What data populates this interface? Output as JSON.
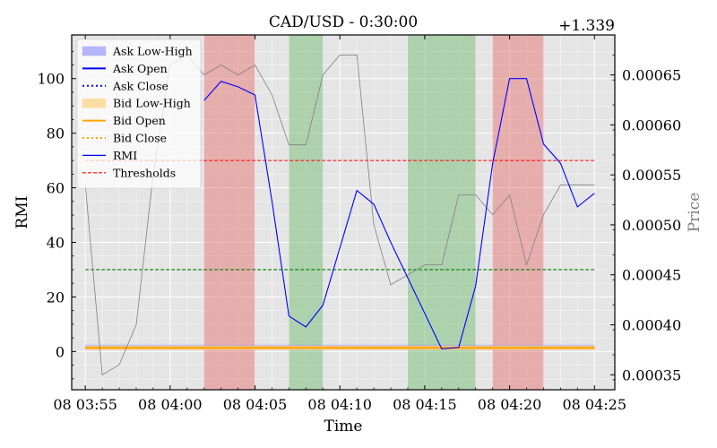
{
  "chart_data": {
    "type": "line",
    "title": "CAD/USD - 0:30:00",
    "xlabel": "Time",
    "ylabel_left": "RMI",
    "ylabel_right": "Price",
    "right_axis_offset_label": "+1.339",
    "x_ticks": [
      "08 03:55",
      "08 04:00",
      "08 04:05",
      "08 04:10",
      "08 04:15",
      "08 04:20",
      "08 04:25"
    ],
    "y_left_ticks": [
      "0",
      "20",
      "40",
      "60",
      "80",
      "100"
    ],
    "y_right_ticks": [
      "0.00035",
      "0.00040",
      "0.00045",
      "0.00050",
      "0.00055",
      "0.00060",
      "0.00065"
    ],
    "x_range_min": [
      -0.8,
      31.2
    ],
    "ylim_left": [
      -14,
      116
    ],
    "ylim_right": [
      0.000335,
      0.00069
    ],
    "grid": true,
    "legend_position": "upper-left",
    "colors": {
      "ask_band": "#9999ff",
      "ask_line": "#0000ff",
      "bid_band": "#ffd27f",
      "bid_line": "#ffa500",
      "rmi": "#0000ff",
      "upper_threshold": "#ff0000",
      "lower_threshold": "#008000",
      "price_line": "#808080",
      "overbought_span": "#e88080",
      "oversold_span": "#7fbf7f",
      "plot_bg": "#e5e5e5"
    },
    "legend": [
      {
        "label": "Ask Low-High",
        "kind": "band",
        "color": "#9999ff"
      },
      {
        "label": "Ask Open",
        "kind": "solid",
        "color": "#0000ff"
      },
      {
        "label": "Ask Close",
        "kind": "dotted",
        "color": "#0000ff"
      },
      {
        "label": "Bid Low-High",
        "kind": "band",
        "color": "#ffd27f"
      },
      {
        "label": "Bid Open",
        "kind": "solid",
        "color": "#ffa500"
      },
      {
        "label": "Bid Close",
        "kind": "dotted",
        "color": "#ffa500"
      },
      {
        "label": "RMI",
        "kind": "thin",
        "color": "#0000ff"
      },
      {
        "label": "Thresholds",
        "kind": "dashed",
        "color": "#ff0000"
      }
    ],
    "thresholds": {
      "upper": 70,
      "lower": 30
    },
    "red_spans": [
      [
        7,
        10
      ],
      [
        24,
        27
      ]
    ],
    "green_spans": [
      [
        12,
        14
      ],
      [
        19,
        23
      ]
    ],
    "rmi": {
      "x": [
        7,
        8,
        9,
        10,
        11,
        12,
        13,
        14,
        15,
        16,
        17,
        18,
        19,
        20,
        21,
        22,
        23,
        24,
        25,
        26,
        27,
        28,
        29,
        30
      ],
      "y": [
        92,
        99,
        97,
        94,
        55,
        13,
        9,
        17,
        38,
        59,
        54,
        40,
        27,
        14,
        1,
        1.5,
        24,
        69,
        100,
        100,
        76,
        69,
        53,
        58
      ]
    },
    "price": {
      "x": [
        0,
        1,
        2,
        3,
        4,
        5,
        6,
        7,
        8,
        9,
        10,
        11,
        12,
        13,
        14,
        15,
        16,
        17,
        18,
        19,
        20,
        21,
        22,
        23,
        24,
        25,
        26,
        27,
        28,
        29,
        30
      ],
      "y": [
        0.00054,
        0.00035,
        0.00036,
        0.0004,
        0.00055,
        0.00066,
        0.00067,
        0.00065,
        0.00066,
        0.00065,
        0.00066,
        0.00063,
        0.00058,
        0.00058,
        0.00065,
        0.00067,
        0.00067,
        0.0005,
        0.00044,
        0.00045,
        0.00046,
        0.00046,
        0.00053,
        0.00053,
        0.00051,
        0.00053,
        0.00046,
        0.00051,
        0.00054,
        0.00054,
        0.00054
      ]
    },
    "ask_bid": {
      "x": [
        0,
        30
      ],
      "ask_low": 0.000375,
      "ask_high": 0.00038,
      "ask_open": 0.000377,
      "ask_close": 0.000377,
      "bid_low": 0.000375,
      "bid_high": 0.000379,
      "bid_open": 0.000377,
      "bid_close": 0.000377
    }
  }
}
